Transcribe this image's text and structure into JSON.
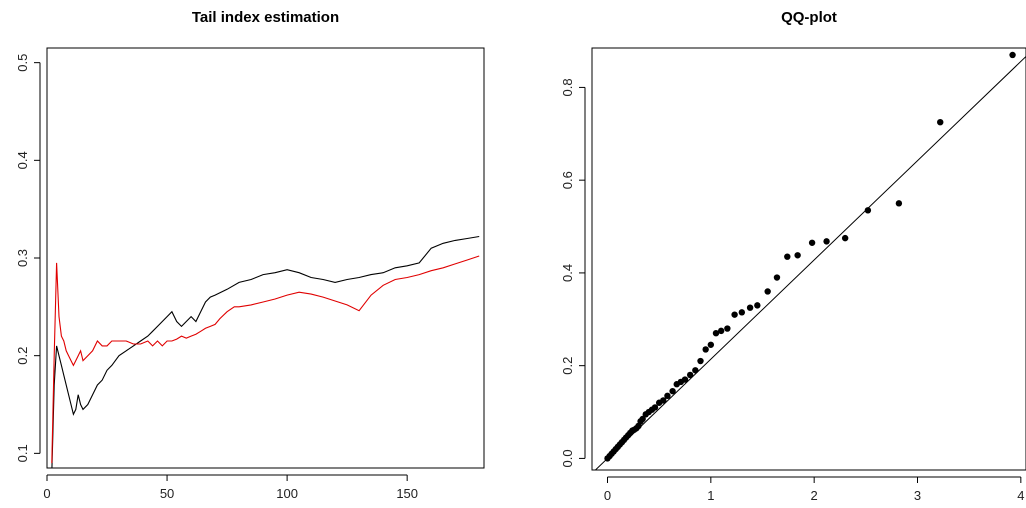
{
  "chart_data": [
    {
      "type": "line",
      "title": "Tail index estimation",
      "xlabel": "",
      "ylabel": "",
      "xlim": [
        0,
        182
      ],
      "ylim": [
        0.085,
        0.515
      ],
      "x_ticks": [
        0,
        50,
        100,
        150
      ],
      "y_ticks": [
        0.1,
        0.2,
        0.3,
        0.4,
        0.5
      ],
      "x_tick_labels": [
        "0",
        "50",
        "100",
        "150"
      ],
      "y_tick_labels": [
        "0.1",
        "0.2",
        "0.3",
        "0.4",
        "0.5"
      ],
      "grid": false,
      "series": [
        {
          "color": "#000000",
          "points": [
            [
              2,
              0.08
            ],
            [
              3,
              0.17
            ],
            [
              4,
              0.21
            ],
            [
              5,
              0.2
            ],
            [
              6,
              0.19
            ],
            [
              7,
              0.18
            ],
            [
              8,
              0.17
            ],
            [
              9,
              0.16
            ],
            [
              10,
              0.15
            ],
            [
              11,
              0.14
            ],
            [
              12,
              0.145
            ],
            [
              13,
              0.16
            ],
            [
              14,
              0.15
            ],
            [
              15,
              0.145
            ],
            [
              17,
              0.15
            ],
            [
              19,
              0.16
            ],
            [
              21,
              0.17
            ],
            [
              23,
              0.175
            ],
            [
              25,
              0.185
            ],
            [
              27,
              0.19
            ],
            [
              30,
              0.2
            ],
            [
              33,
              0.205
            ],
            [
              36,
              0.21
            ],
            [
              39,
              0.215
            ],
            [
              42,
              0.22
            ],
            [
              44,
              0.225
            ],
            [
              46,
              0.23
            ],
            [
              48,
              0.235
            ],
            [
              50,
              0.24
            ],
            [
              52,
              0.245
            ],
            [
              54,
              0.235
            ],
            [
              56,
              0.23
            ],
            [
              58,
              0.235
            ],
            [
              60,
              0.24
            ],
            [
              62,
              0.235
            ],
            [
              64,
              0.245
            ],
            [
              66,
              0.255
            ],
            [
              68,
              0.26
            ],
            [
              70,
              0.262
            ],
            [
              75,
              0.268
            ],
            [
              80,
              0.275
            ],
            [
              85,
              0.278
            ],
            [
              90,
              0.283
            ],
            [
              95,
              0.285
            ],
            [
              100,
              0.288
            ],
            [
              105,
              0.285
            ],
            [
              110,
              0.28
            ],
            [
              115,
              0.278
            ],
            [
              120,
              0.275
            ],
            [
              125,
              0.278
            ],
            [
              130,
              0.28
            ],
            [
              135,
              0.283
            ],
            [
              140,
              0.285
            ],
            [
              145,
              0.29
            ],
            [
              150,
              0.292
            ],
            [
              155,
              0.295
            ],
            [
              160,
              0.31
            ],
            [
              165,
              0.315
            ],
            [
              170,
              0.318
            ],
            [
              175,
              0.32
            ],
            [
              180,
              0.322
            ]
          ]
        },
        {
          "color": "#e00000",
          "points": [
            [
              2,
              0.09
            ],
            [
              3,
              0.2
            ],
            [
              4,
              0.295
            ],
            [
              5,
              0.24
            ],
            [
              6,
              0.22
            ],
            [
              7,
              0.215
            ],
            [
              8,
              0.205
            ],
            [
              9,
              0.2
            ],
            [
              10,
              0.195
            ],
            [
              11,
              0.19
            ],
            [
              12,
              0.195
            ],
            [
              13,
              0.2
            ],
            [
              14,
              0.205
            ],
            [
              15,
              0.195
            ],
            [
              17,
              0.2
            ],
            [
              19,
              0.205
            ],
            [
              21,
              0.215
            ],
            [
              23,
              0.21
            ],
            [
              25,
              0.21
            ],
            [
              27,
              0.215
            ],
            [
              30,
              0.215
            ],
            [
              33,
              0.215
            ],
            [
              36,
              0.212
            ],
            [
              39,
              0.212
            ],
            [
              42,
              0.215
            ],
            [
              44,
              0.21
            ],
            [
              46,
              0.215
            ],
            [
              48,
              0.21
            ],
            [
              50,
              0.215
            ],
            [
              52,
              0.215
            ],
            [
              54,
              0.217
            ],
            [
              56,
              0.22
            ],
            [
              58,
              0.218
            ],
            [
              60,
              0.22
            ],
            [
              62,
              0.222
            ],
            [
              64,
              0.225
            ],
            [
              66,
              0.228
            ],
            [
              68,
              0.23
            ],
            [
              70,
              0.232
            ],
            [
              72,
              0.238
            ],
            [
              75,
              0.245
            ],
            [
              78,
              0.25
            ],
            [
              80,
              0.25
            ],
            [
              85,
              0.252
            ],
            [
              90,
              0.255
            ],
            [
              95,
              0.258
            ],
            [
              100,
              0.262
            ],
            [
              105,
              0.265
            ],
            [
              110,
              0.263
            ],
            [
              115,
              0.26
            ],
            [
              120,
              0.256
            ],
            [
              125,
              0.252
            ],
            [
              130,
              0.246
            ],
            [
              135,
              0.262
            ],
            [
              140,
              0.272
            ],
            [
              145,
              0.278
            ],
            [
              150,
              0.28
            ],
            [
              155,
              0.283
            ],
            [
              160,
              0.287
            ],
            [
              165,
              0.29
            ],
            [
              170,
              0.294
            ],
            [
              175,
              0.298
            ],
            [
              180,
              0.302
            ]
          ]
        }
      ]
    },
    {
      "type": "scatter",
      "title": "QQ-plot",
      "xlabel": "",
      "ylabel": "",
      "xlim": [
        -0.15,
        4.05
      ],
      "ylim": [
        -0.025,
        0.885
      ],
      "x_ticks": [
        0,
        1,
        2,
        3,
        4
      ],
      "y_ticks": [
        0.0,
        0.2,
        0.4,
        0.6,
        0.8
      ],
      "x_tick_labels": [
        "0",
        "1",
        "2",
        "3",
        "4"
      ],
      "y_tick_labels": [
        "0.0",
        "0.2",
        "0.4",
        "0.6",
        "0.8"
      ],
      "grid": false,
      "reference_line": {
        "slope": 0.214,
        "intercept": 0.0
      },
      "points": [
        [
          0.0,
          0.0
        ],
        [
          0.02,
          0.005
        ],
        [
          0.04,
          0.01
        ],
        [
          0.06,
          0.015
        ],
        [
          0.08,
          0.02
        ],
        [
          0.1,
          0.025
        ],
        [
          0.12,
          0.03
        ],
        [
          0.14,
          0.035
        ],
        [
          0.16,
          0.04
        ],
        [
          0.18,
          0.045
        ],
        [
          0.2,
          0.05
        ],
        [
          0.22,
          0.055
        ],
        [
          0.24,
          0.06
        ],
        [
          0.26,
          0.062
        ],
        [
          0.28,
          0.065
        ],
        [
          0.3,
          0.07
        ],
        [
          0.32,
          0.08
        ],
        [
          0.34,
          0.085
        ],
        [
          0.37,
          0.095
        ],
        [
          0.4,
          0.1
        ],
        [
          0.43,
          0.105
        ],
        [
          0.46,
          0.11
        ],
        [
          0.5,
          0.12
        ],
        [
          0.54,
          0.125
        ],
        [
          0.58,
          0.135
        ],
        [
          0.63,
          0.145
        ],
        [
          0.67,
          0.16
        ],
        [
          0.71,
          0.165
        ],
        [
          0.75,
          0.17
        ],
        [
          0.8,
          0.18
        ],
        [
          0.85,
          0.19
        ],
        [
          0.9,
          0.21
        ],
        [
          0.95,
          0.235
        ],
        [
          1.0,
          0.245
        ],
        [
          1.05,
          0.27
        ],
        [
          1.1,
          0.275
        ],
        [
          1.16,
          0.28
        ],
        [
          1.23,
          0.31
        ],
        [
          1.3,
          0.315
        ],
        [
          1.38,
          0.325
        ],
        [
          1.45,
          0.33
        ],
        [
          1.55,
          0.36
        ],
        [
          1.64,
          0.39
        ],
        [
          1.74,
          0.435
        ],
        [
          1.84,
          0.438
        ],
        [
          1.98,
          0.465
        ],
        [
          2.12,
          0.468
        ],
        [
          2.3,
          0.475
        ],
        [
          2.52,
          0.535
        ],
        [
          2.82,
          0.55
        ],
        [
          3.22,
          0.725
        ],
        [
          3.92,
          0.87
        ]
      ]
    }
  ]
}
